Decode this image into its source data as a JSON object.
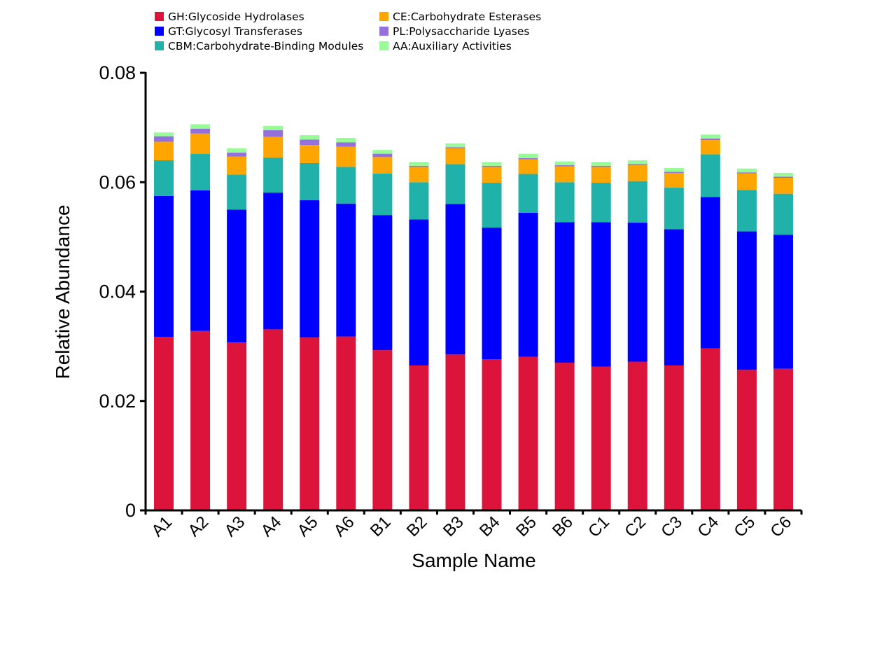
{
  "chart_data": {
    "type": "bar",
    "stacked": true,
    "title": "",
    "xlabel": "Sample Name",
    "ylabel": "Relative Abundance",
    "ylim": [
      0,
      0.08
    ],
    "yticks": [
      0,
      0.02,
      0.04,
      0.06,
      0.08
    ],
    "ytick_labels": [
      "0",
      "0.02",
      "0.04",
      "0.06",
      "0.08"
    ],
    "grid": false,
    "legend_position": "top",
    "categories": [
      "A1",
      "A2",
      "A3",
      "A4",
      "A5",
      "A6",
      "B1",
      "B2",
      "B3",
      "B4",
      "B5",
      "B6",
      "C1",
      "C2",
      "C3",
      "C4",
      "C5",
      "C6"
    ],
    "series": [
      {
        "name": "GH:Glycoside Hydrolases",
        "color": "#dc143c",
        "values": [
          0.0317,
          0.0328,
          0.0307,
          0.0331,
          0.0316,
          0.0318,
          0.0293,
          0.0265,
          0.0285,
          0.0276,
          0.0281,
          0.027,
          0.0263,
          0.0272,
          0.0265,
          0.0296,
          0.0257,
          0.0259
        ]
      },
      {
        "name": "GT:Glycosyl Transferases",
        "color": "#0000ff",
        "values": [
          0.0258,
          0.0257,
          0.0243,
          0.025,
          0.0251,
          0.0243,
          0.0247,
          0.0267,
          0.0275,
          0.0241,
          0.0263,
          0.0257,
          0.0264,
          0.0254,
          0.0249,
          0.0277,
          0.0253,
          0.0245
        ]
      },
      {
        "name": "CBM:Carbohydrate-Binding Modules",
        "color": "#20b2aa",
        "values": [
          0.0065,
          0.0067,
          0.0064,
          0.0064,
          0.0068,
          0.0067,
          0.0076,
          0.0068,
          0.0073,
          0.0082,
          0.0071,
          0.0073,
          0.0072,
          0.0076,
          0.0076,
          0.0078,
          0.0076,
          0.0075
        ]
      },
      {
        "name": "CE:Carbohydrate Esterases",
        "color": "#ffa500",
        "values": [
          0.0034,
          0.0037,
          0.0033,
          0.0038,
          0.0033,
          0.0037,
          0.003,
          0.0028,
          0.0029,
          0.0029,
          0.0027,
          0.0029,
          0.0029,
          0.0029,
          0.0027,
          0.0026,
          0.003,
          0.0029
        ]
      },
      {
        "name": "PL:Polysaccharide Lyases",
        "color": "#9370db",
        "values": [
          0.001,
          0.0009,
          0.0007,
          0.0012,
          0.001,
          0.0008,
          0.0006,
          0.0002,
          0.0002,
          0.0002,
          0.0002,
          0.0002,
          0.0002,
          0.0002,
          0.0002,
          0.0003,
          0.0002,
          0.0002
        ]
      },
      {
        "name": "AA:Auxiliary Activities",
        "color": "#98fb98",
        "values": [
          0.0007,
          0.0008,
          0.0008,
          0.0008,
          0.0008,
          0.0008,
          0.0007,
          0.0007,
          0.0007,
          0.0007,
          0.0008,
          0.0007,
          0.0007,
          0.0007,
          0.0007,
          0.0007,
          0.0007,
          0.0007
        ]
      }
    ]
  }
}
